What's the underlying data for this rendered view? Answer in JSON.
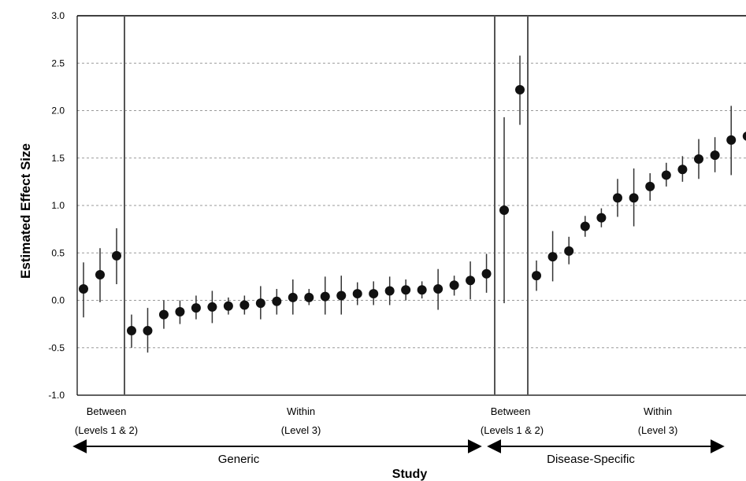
{
  "chart_data": {
    "type": "scatter",
    "title": "",
    "ylabel": "Estimated Effect Size",
    "xlabel": "Study",
    "ylim": [
      -1.0,
      3.0
    ],
    "yticks": [
      "3.0",
      "2.5",
      "2.0",
      "1.5",
      "1.0",
      "0.5",
      "0.0",
      "-0.5",
      "-1.0"
    ],
    "grid": "horizontal-dashed",
    "group_labels": [
      {
        "line1": "Between",
        "line2": "(Levels 1 & 2)"
      },
      {
        "line1": "Within",
        "line2": "(Level 3)"
      },
      {
        "line1": "Between",
        "line2": "(Levels 1 & 2)"
      },
      {
        "line1": "Within",
        "line2": "(Level 3)"
      }
    ],
    "categories": [
      "Generic",
      "Disease-Specific"
    ],
    "series": [
      {
        "group": "generic-between",
        "points": [
          {
            "y": 0.12,
            "lo": -0.18,
            "hi": 0.4
          },
          {
            "y": 0.27,
            "lo": -0.02,
            "hi": 0.55
          },
          {
            "y": 0.47,
            "lo": 0.17,
            "hi": 0.76
          }
        ]
      },
      {
        "group": "generic-within",
        "points": [
          {
            "y": -0.32,
            "lo": -0.5,
            "hi": -0.15
          },
          {
            "y": -0.32,
            "lo": -0.55,
            "hi": -0.08
          },
          {
            "y": -0.15,
            "lo": -0.3,
            "hi": 0.0
          },
          {
            "y": -0.12,
            "lo": -0.25,
            "hi": 0.0
          },
          {
            "y": -0.08,
            "lo": -0.2,
            "hi": 0.05
          },
          {
            "y": -0.07,
            "lo": -0.24,
            "hi": 0.1
          },
          {
            "y": -0.06,
            "lo": -0.15,
            "hi": 0.03
          },
          {
            "y": -0.05,
            "lo": -0.15,
            "hi": 0.05
          },
          {
            "y": -0.03,
            "lo": -0.2,
            "hi": 0.15
          },
          {
            "y": -0.01,
            "lo": -0.15,
            "hi": 0.12
          },
          {
            "y": 0.03,
            "lo": -0.15,
            "hi": 0.22
          },
          {
            "y": 0.03,
            "lo": -0.05,
            "hi": 0.12
          },
          {
            "y": 0.04,
            "lo": -0.15,
            "hi": 0.25
          },
          {
            "y": 0.05,
            "lo": -0.15,
            "hi": 0.26
          },
          {
            "y": 0.07,
            "lo": -0.05,
            "hi": 0.19
          },
          {
            "y": 0.07,
            "lo": -0.05,
            "hi": 0.2
          },
          {
            "y": 0.1,
            "lo": -0.05,
            "hi": 0.25
          },
          {
            "y": 0.11,
            "lo": 0.0,
            "hi": 0.22
          },
          {
            "y": 0.11,
            "lo": 0.02,
            "hi": 0.2
          },
          {
            "y": 0.12,
            "lo": -0.1,
            "hi": 0.33
          },
          {
            "y": 0.16,
            "lo": 0.05,
            "hi": 0.26
          },
          {
            "y": 0.21,
            "lo": 0.01,
            "hi": 0.41
          },
          {
            "y": 0.28,
            "lo": 0.08,
            "hi": 0.49
          }
        ]
      },
      {
        "group": "disease-between",
        "points": [
          {
            "y": 0.95,
            "lo": -0.03,
            "hi": 1.93
          },
          {
            "y": 2.22,
            "lo": 1.85,
            "hi": 2.58
          }
        ]
      },
      {
        "group": "disease-within",
        "points": [
          {
            "y": 0.26,
            "lo": 0.1,
            "hi": 0.42
          },
          {
            "y": 0.46,
            "lo": 0.2,
            "hi": 0.73
          },
          {
            "y": 0.52,
            "lo": 0.38,
            "hi": 0.67
          },
          {
            "y": 0.78,
            "lo": 0.67,
            "hi": 0.89
          },
          {
            "y": 0.87,
            "lo": 0.77,
            "hi": 0.97
          },
          {
            "y": 1.08,
            "lo": 0.88,
            "hi": 1.28
          },
          {
            "y": 1.08,
            "lo": 0.78,
            "hi": 1.39
          },
          {
            "y": 1.2,
            "lo": 1.05,
            "hi": 1.34
          },
          {
            "y": 1.32,
            "lo": 1.2,
            "hi": 1.45
          },
          {
            "y": 1.38,
            "lo": 1.25,
            "hi": 1.52
          },
          {
            "y": 1.49,
            "lo": 1.28,
            "hi": 1.7
          },
          {
            "y": 1.53,
            "lo": 1.35,
            "hi": 1.72
          },
          {
            "y": 1.69,
            "lo": 1.32,
            "hi": 2.05
          },
          {
            "y": 1.73,
            "lo": 1.5,
            "hi": 1.96
          }
        ]
      }
    ]
  }
}
